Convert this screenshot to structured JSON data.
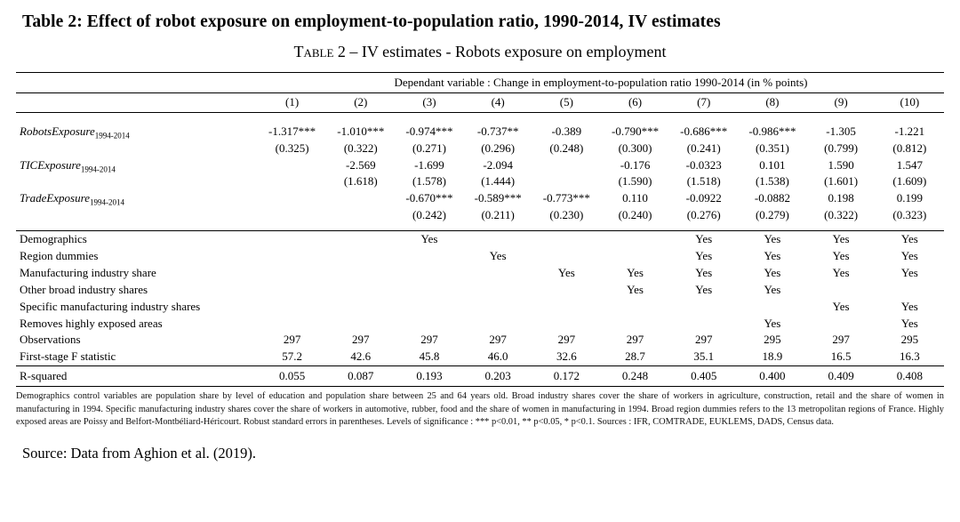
{
  "page_title": "Table 2: Effect of robot exposure on employment-to-population ratio, 1990-2014, IV estimates",
  "table": {
    "caption_prefix": "Table 2",
    "caption_rest": " – IV estimates - Robots exposure on employment",
    "dep_var_header": "Dependant variable : Change in employment-to-population ratio 1990-2014 (in % points)",
    "columns": [
      "(1)",
      "(2)",
      "(3)",
      "(4)",
      "(5)",
      "(6)",
      "(7)",
      "(8)",
      "(9)",
      "(10)"
    ],
    "coef_rows": [
      {
        "label": "RobotsExposure",
        "sub": "1994-2014",
        "estimates": [
          "-1.317***",
          "-1.010***",
          "-0.974***",
          "-0.737**",
          "-0.389",
          "-0.790***",
          "-0.686***",
          "-0.986***",
          "-1.305",
          "-1.221"
        ],
        "std_errors": [
          "(0.325)",
          "(0.322)",
          "(0.271)",
          "(0.296)",
          "(0.248)",
          "(0.300)",
          "(0.241)",
          "(0.351)",
          "(0.799)",
          "(0.812)"
        ]
      },
      {
        "label": "TICExposure",
        "sub": "1994-2014",
        "estimates": [
          "",
          "-2.569",
          "-1.699",
          "-2.094",
          "",
          "-0.176",
          "-0.0323",
          "0.101",
          "1.590",
          "1.547"
        ],
        "std_errors": [
          "",
          "(1.618)",
          "(1.578)",
          "(1.444)",
          "",
          "(1.590)",
          "(1.518)",
          "(1.538)",
          "(1.601)",
          "(1.609)"
        ]
      },
      {
        "label": "TradeExposure",
        "sub": "1994-2014",
        "estimates": [
          "",
          "",
          "-0.670***",
          "-0.589***",
          "-0.773***",
          "0.110",
          "-0.0922",
          "-0.0882",
          "0.198",
          "0.199"
        ],
        "std_errors": [
          "",
          "",
          "(0.242)",
          "(0.211)",
          "(0.230)",
          "(0.240)",
          "(0.276)",
          "(0.279)",
          "(0.322)",
          "(0.323)"
        ]
      }
    ],
    "control_rows": [
      {
        "label": "Demographics",
        "values": [
          "",
          "",
          "Yes",
          "",
          "",
          "",
          "Yes",
          "Yes",
          "Yes",
          "Yes"
        ]
      },
      {
        "label": "Region dummies",
        "values": [
          "",
          "",
          "",
          "Yes",
          "",
          "",
          "Yes",
          "Yes",
          "Yes",
          "Yes"
        ]
      },
      {
        "label": "Manufacturing industry share",
        "values": [
          "",
          "",
          "",
          "",
          "Yes",
          "Yes",
          "Yes",
          "Yes",
          "Yes",
          "Yes"
        ]
      },
      {
        "label": "Other broad industry shares",
        "values": [
          "",
          "",
          "",
          "",
          "",
          "Yes",
          "Yes",
          "Yes",
          "",
          ""
        ]
      },
      {
        "label": "Specific manufacturing industry shares",
        "values": [
          "",
          "",
          "",
          "",
          "",
          "",
          "",
          "",
          "Yes",
          "Yes"
        ]
      },
      {
        "label": "Removes highly exposed areas",
        "values": [
          "",
          "",
          "",
          "",
          "",
          "",
          "",
          "Yes",
          "",
          "Yes"
        ]
      }
    ],
    "stat_rows": [
      {
        "label": "Observations",
        "values": [
          "297",
          "297",
          "297",
          "297",
          "297",
          "297",
          "297",
          "295",
          "297",
          "295"
        ]
      },
      {
        "label": "First-stage F statistic",
        "values": [
          "57.2",
          "42.6",
          "45.8",
          "46.0",
          "32.6",
          "28.7",
          "35.1",
          "18.9",
          "16.5",
          "16.3"
        ]
      }
    ],
    "rsq_row": {
      "label": "R-squared",
      "values": [
        "0.055",
        "0.087",
        "0.193",
        "0.203",
        "0.172",
        "0.248",
        "0.405",
        "0.400",
        "0.409",
        "0.408"
      ]
    }
  },
  "footnote": "Demographics control variables are population share by level of education and population share between 25 and 64 years old. Broad industry shares cover the share of workers in agriculture, construction, retail and the share of women in manufacturing in 1994. Specific manufacturing industry shares cover the share of workers in automotive, rubber, food and the share of women in manufacturing in 1994. Broad region dummies refers to the 13 metropolitan regions of France. Highly exposed areas are Poissy and Belfort-Montbéliard-Héricourt. Robust standard errors in parentheses. Levels of significance : *** p<0.01, ** p<0.05, * p<0.1. Sources : IFR, COMTRADE, EUKLEMS, DADS, Census data.",
  "source_line": "Source: Data from Aghion et al. (2019)."
}
